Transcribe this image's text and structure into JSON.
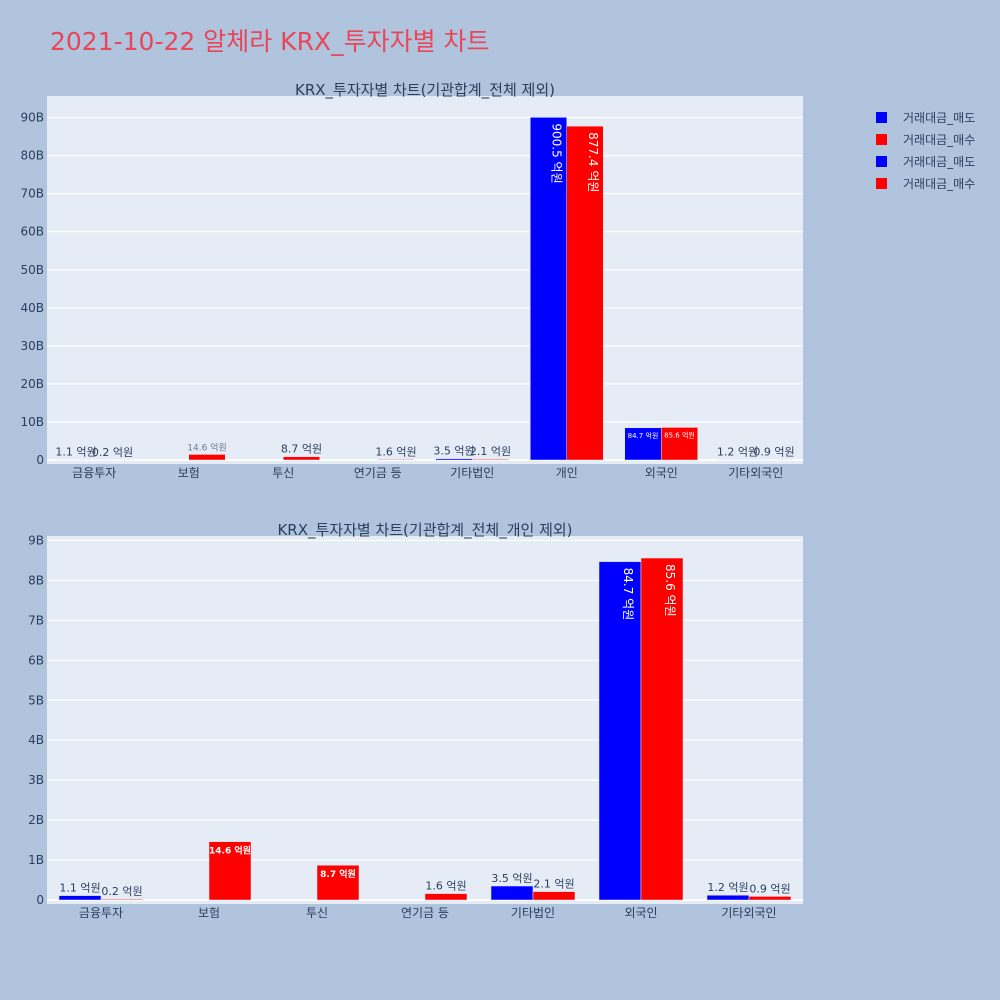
{
  "page_title": "2021-10-22 알체라 KRX_투자자별 차트",
  "colors": {
    "sell": "#0000ff",
    "buy": "#ff0000",
    "plot_bg": "#e5ecf6",
    "paper_bg": "#b0c4de",
    "title": "#e8475a",
    "axis_text": "#2a3f5f"
  },
  "legend": [
    {
      "label": "거래대금_매도",
      "color": "#0000ff"
    },
    {
      "label": "거래대금_매수",
      "color": "#ff0000"
    },
    {
      "label": "거래대금_매도",
      "color": "#0000ff"
    },
    {
      "label": "거래대금_매수",
      "color": "#ff0000"
    }
  ],
  "chart_data": [
    {
      "type": "bar",
      "title": "KRX_투자자별 차트(기관합계_전체 제외)",
      "categories": [
        "금융투자",
        "보험",
        "투신",
        "연기금 등",
        "기타법인",
        "개인",
        "외국인",
        "기타외국인"
      ],
      "ylim": [
        0,
        95
      ],
      "yticks": [
        "0",
        "10B",
        "20B",
        "30B",
        "40B",
        "50B",
        "60B",
        "70B",
        "80B",
        "90B"
      ],
      "grid": true,
      "series": [
        {
          "name": "거래대금_매도",
          "values": [
            0.11,
            0,
            0,
            0,
            0.35,
            90.05,
            8.47,
            0.12
          ],
          "labels": [
            "1.1 억원",
            "",
            "",
            "",
            "3.5 억원",
            "900.5 억원",
            "84.7 억원",
            "1.2 억원"
          ]
        },
        {
          "name": "거래대금_매수",
          "values": [
            0.02,
            1.46,
            0.87,
            0.16,
            0.21,
            87.74,
            8.56,
            0.09
          ],
          "labels": [
            "0.2 억원",
            "14.6 억원",
            "8.7 억원",
            "1.6 억원",
            "2.1 억원",
            "877.4 억원",
            "85.6 억원",
            "0.9 억원"
          ]
        }
      ]
    },
    {
      "type": "bar",
      "title": "KRX_투자자별 차트(기관합계_전체_개인 제외)",
      "categories": [
        "금융투자",
        "보험",
        "투신",
        "연기금 등",
        "기타법인",
        "외국인",
        "기타외국인"
      ],
      "ylim": [
        0,
        9
      ],
      "yticks": [
        "0",
        "1B",
        "2B",
        "3B",
        "4B",
        "5B",
        "6B",
        "7B",
        "8B",
        "9B"
      ],
      "grid": true,
      "series": [
        {
          "name": "거래대금_매도",
          "values": [
            0.11,
            0,
            0,
            0,
            0.35,
            8.47,
            0.12
          ],
          "labels": [
            "1.1 억원",
            "",
            "",
            "",
            "3.5 억원",
            "84.7 억원",
            "1.2 억원"
          ]
        },
        {
          "name": "거래대금_매수",
          "values": [
            0.02,
            1.46,
            0.87,
            0.16,
            0.21,
            8.56,
            0.09
          ],
          "labels": [
            "0.2 억원",
            "14.6 억원",
            "8.7 억원",
            "1.6 억원",
            "2.1 억원",
            "85.6 억원",
            "0.9 억원"
          ]
        }
      ]
    }
  ]
}
